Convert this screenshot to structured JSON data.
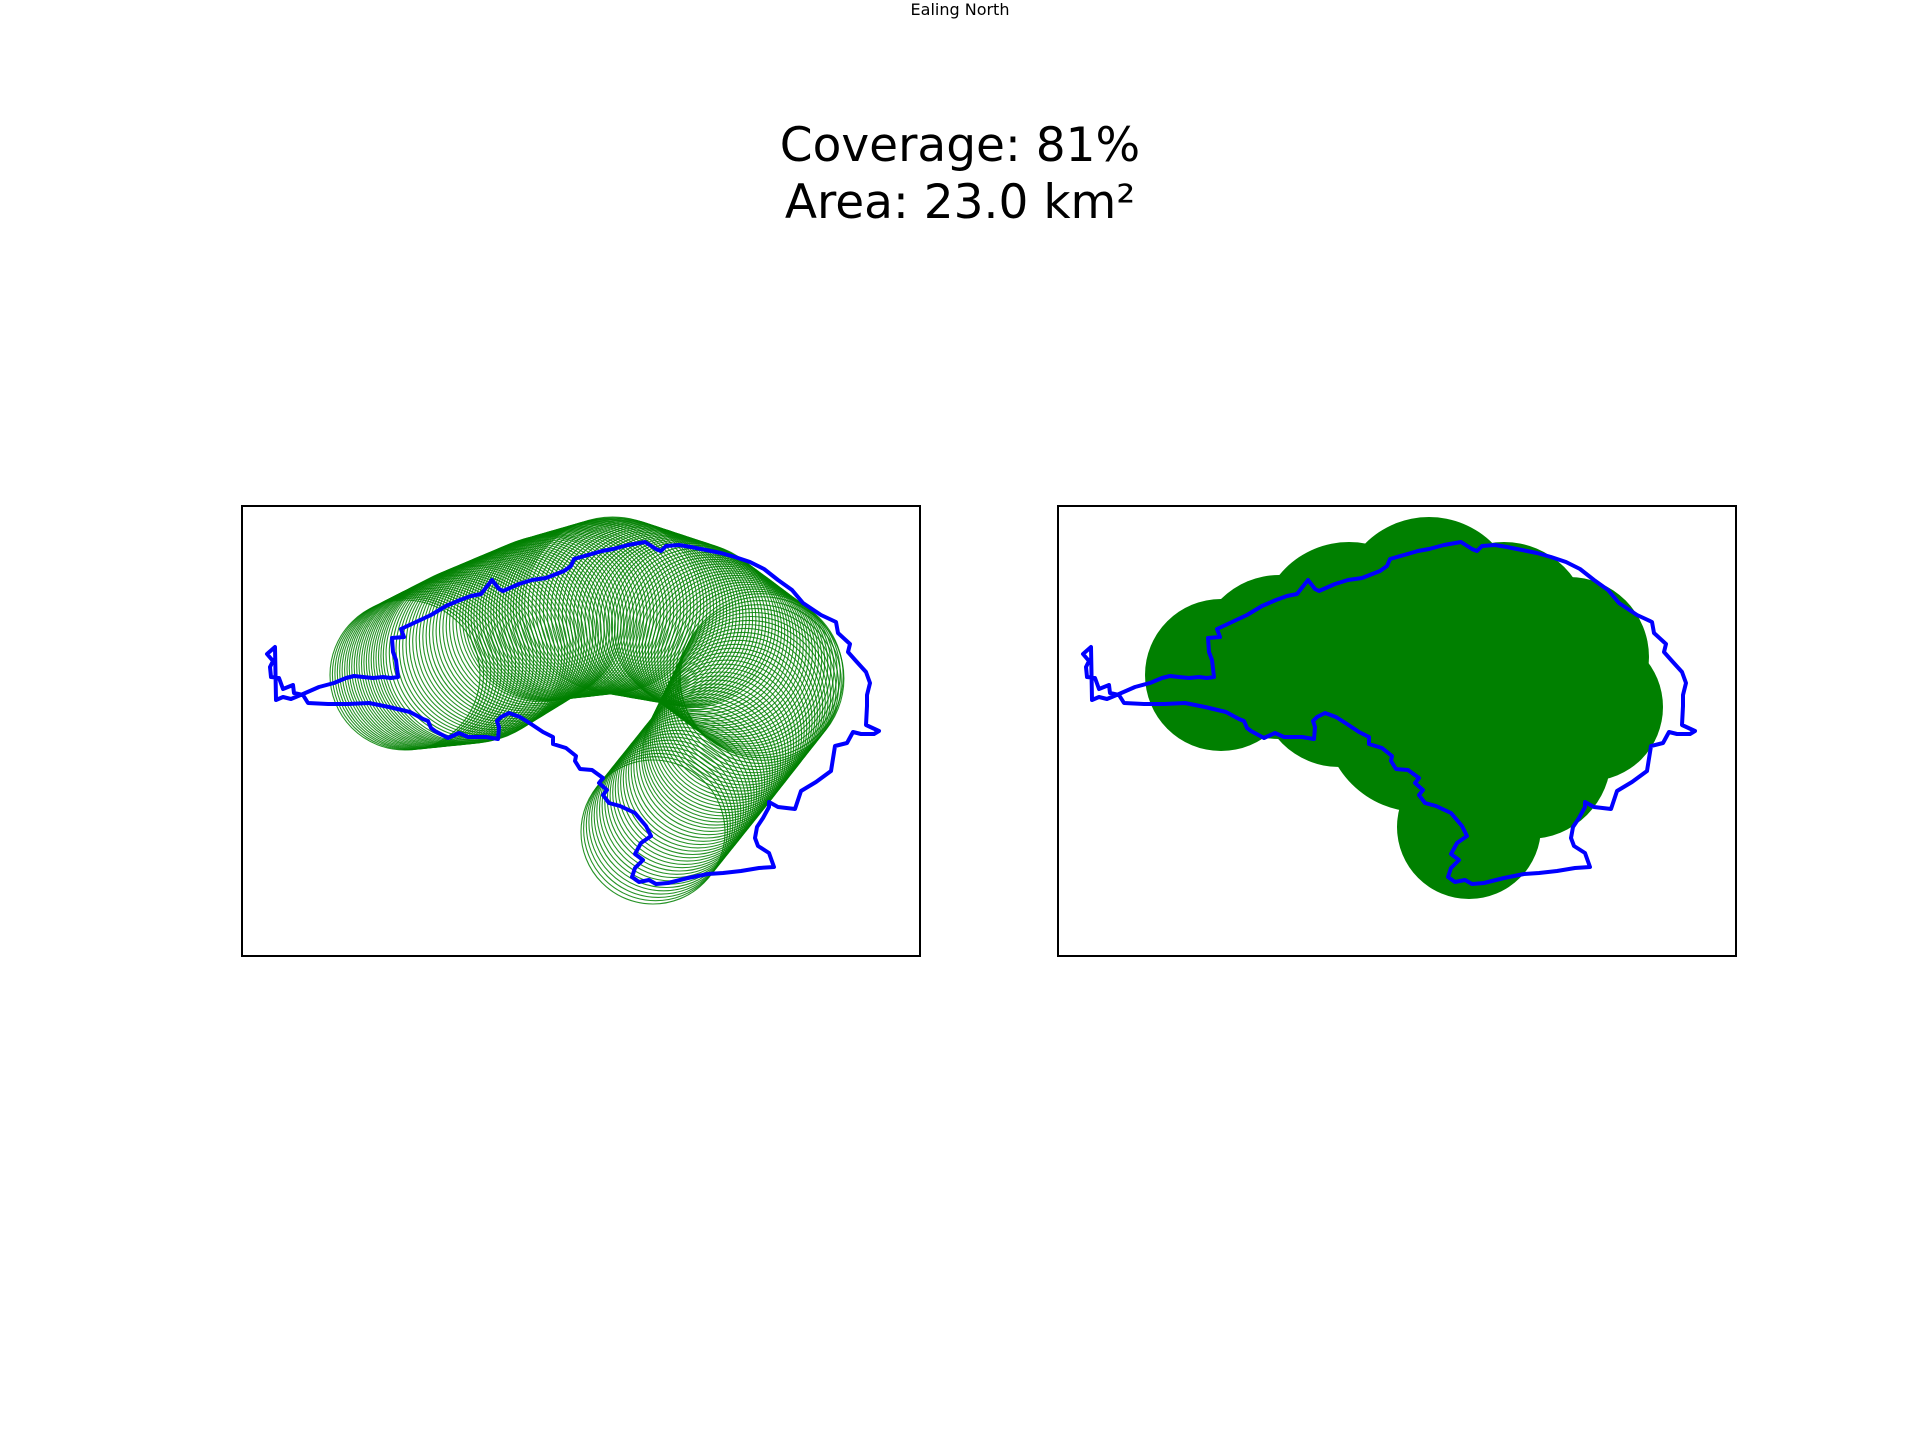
{
  "figure": {
    "title": "Ealing North",
    "coverage_label": "Coverage: 81%",
    "area_label": "Area: 23.0 km²"
  },
  "summary": {
    "coverage_percent": 81,
    "area_km2": 23.0
  },
  "panels": [
    {
      "id": "left",
      "style": "outlined-circles"
    },
    {
      "id": "right",
      "style": "filled-union"
    }
  ],
  "colors": {
    "boundary": "#0000ff",
    "coverage": "#008000",
    "frame": "#000000",
    "background": "#ffffff"
  }
}
